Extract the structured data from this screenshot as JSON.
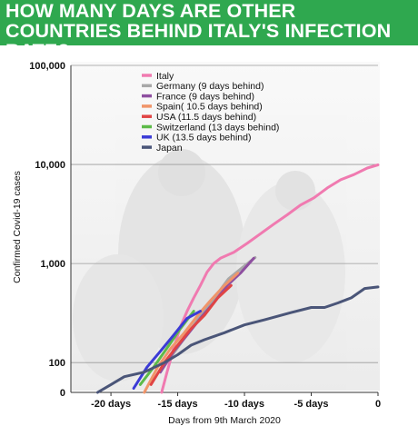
{
  "header": {
    "title": "HOW MANY DAYS ARE OTHER COUNTRIES BEHIND ITALY'S INFECTION RATE?",
    "background": "#2fa84f",
    "text_color": "#ffffff"
  },
  "chart_data": {
    "type": "line",
    "title": "HOW MANY DAYS ARE OTHER COUNTRIES BEHIND ITALY'S INFECTION RATE?",
    "xlabel": "Days from 9th March 2020",
    "ylabel": "Confirmed Covid-19 cases",
    "x_scale": "linear",
    "y_scale": "log",
    "xlim": [
      -23,
      0
    ],
    "ylim": [
      50,
      100000
    ],
    "x_ticks": [
      -20,
      -15,
      -10,
      -5,
      0
    ],
    "x_tick_labels": [
      "-20 days",
      "-15 days",
      "-10 days",
      "-5 days",
      "0"
    ],
    "y_ticks": [
      100,
      1000,
      10000,
      100000
    ],
    "y_tick_labels": [
      "100",
      "1,000",
      "10,000",
      "100,000"
    ],
    "y_zero_label": "0",
    "grid": "horizontal",
    "legend_position": "top-left",
    "series": [
      {
        "name": "Italy",
        "color": "#f07ab0",
        "points": [
          [
            -16.2,
            50
          ],
          [
            -15.8,
            80
          ],
          [
            -15.3,
            140
          ],
          [
            -14.8,
            230
          ],
          [
            -14.3,
            330
          ],
          [
            -13.8,
            450
          ],
          [
            -13.3,
            600
          ],
          [
            -12.8,
            820
          ],
          [
            -12.3,
            1000
          ],
          [
            -11.8,
            1130
          ],
          [
            -10.8,
            1300
          ],
          [
            -9.8,
            1600
          ],
          [
            -8.8,
            2000
          ],
          [
            -7.8,
            2500
          ],
          [
            -6.8,
            3100
          ],
          [
            -5.8,
            3900
          ],
          [
            -4.8,
            4600
          ],
          [
            -3.8,
            5800
          ],
          [
            -2.8,
            7000
          ],
          [
            -1.8,
            7900
          ],
          [
            -0.8,
            9200
          ],
          [
            0,
            9900
          ]
        ]
      },
      {
        "name": "Germany (9 days behind)",
        "color": "#a8a8a8",
        "points": [
          [
            -16.2,
            85
          ],
          [
            -15.2,
            130
          ],
          [
            -14.2,
            200
          ],
          [
            -13.2,
            310
          ],
          [
            -12.2,
            460
          ],
          [
            -11.2,
            700
          ],
          [
            -10.2,
            900
          ],
          [
            -9.2,
            1150
          ]
        ]
      },
      {
        "name": "France (9 days behind)",
        "color": "#8e4fa0",
        "points": [
          [
            -16.3,
            80
          ],
          [
            -15.3,
            130
          ],
          [
            -14.3,
            190
          ],
          [
            -13.3,
            280
          ],
          [
            -12.3,
            400
          ],
          [
            -11.3,
            600
          ],
          [
            -10.3,
            800
          ],
          [
            -9.3,
            1130
          ]
        ]
      },
      {
        "name": "Spain( 10.5 days behind)",
        "color": "#f0956a",
        "points": [
          [
            -17.5,
            50
          ],
          [
            -16.5,
            90
          ],
          [
            -15.5,
            140
          ],
          [
            -14.5,
            200
          ],
          [
            -13.5,
            300
          ],
          [
            -12.5,
            430
          ],
          [
            -11.5,
            600
          ],
          [
            -10.5,
            800
          ]
        ]
      },
      {
        "name": "USA (11.5 days behind)",
        "color": "#e04444",
        "points": [
          [
            -17.0,
            60
          ],
          [
            -16.0,
            100
          ],
          [
            -15.0,
            150
          ],
          [
            -14.0,
            220
          ],
          [
            -13.0,
            300
          ],
          [
            -12.0,
            450
          ],
          [
            -11.0,
            600
          ]
        ]
      },
      {
        "name": "Switzerland (13 days behind)",
        "color": "#5cba48",
        "points": [
          [
            -17.8,
            60
          ],
          [
            -16.8,
            90
          ],
          [
            -15.8,
            140
          ],
          [
            -14.8,
            220
          ],
          [
            -13.8,
            330
          ]
        ]
      },
      {
        "name": "UK (13.5 days behind)",
        "color": "#3b3bd6",
        "points": [
          [
            -18.3,
            55
          ],
          [
            -17.3,
            90
          ],
          [
            -16.3,
            130
          ],
          [
            -15.3,
            190
          ],
          [
            -14.3,
            280
          ],
          [
            -13.3,
            330
          ]
        ]
      },
      {
        "name": "Japan",
        "color": "#4a5578",
        "points": [
          [
            -21.0,
            50
          ],
          [
            -20.0,
            60
          ],
          [
            -19.0,
            72
          ],
          [
            -17.5,
            80
          ],
          [
            -16.0,
            100
          ],
          [
            -15.0,
            120
          ],
          [
            -14.0,
            150
          ],
          [
            -13.0,
            170
          ],
          [
            -11.5,
            200
          ],
          [
            -10.0,
            240
          ],
          [
            -8.5,
            270
          ],
          [
            -6.5,
            320
          ],
          [
            -5.0,
            360
          ],
          [
            -4.0,
            360
          ],
          [
            -3.0,
            400
          ],
          [
            -2.0,
            450
          ],
          [
            -1.0,
            560
          ],
          [
            0,
            580
          ]
        ]
      }
    ]
  }
}
